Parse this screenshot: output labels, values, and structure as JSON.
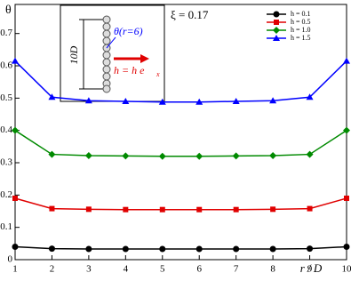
{
  "chart_data": {
    "type": "line",
    "y_label": "θ",
    "x_label": "r / D",
    "x": [
      1,
      2,
      3,
      4,
      5,
      6,
      7,
      8,
      9,
      10
    ],
    "xlim": [
      1,
      10
    ],
    "xticks": [
      1,
      2,
      3,
      4,
      5,
      6,
      7,
      8,
      9,
      10
    ],
    "ylim": [
      0,
      0.79
    ],
    "yticks": [
      0,
      0.1,
      0.2,
      0.3,
      0.4,
      0.5,
      0.6,
      0.7
    ],
    "legend_position": "upper right",
    "series": [
      {
        "name": "h = 0.1",
        "color": "#000000",
        "marker": "circle",
        "values": [
          0.04,
          0.034,
          0.033,
          0.033,
          0.033,
          0.033,
          0.033,
          0.033,
          0.034,
          0.04
        ]
      },
      {
        "name": "h = 0.5",
        "color": "#e00000",
        "marker": "square",
        "values": [
          0.19,
          0.158,
          0.156,
          0.155,
          0.155,
          0.155,
          0.155,
          0.156,
          0.158,
          0.19
        ]
      },
      {
        "name": "h = 1.0",
        "color": "#008a00",
        "marker": "diamond",
        "values": [
          0.4,
          0.326,
          0.322,
          0.321,
          0.32,
          0.32,
          0.321,
          0.322,
          0.326,
          0.4
        ]
      },
      {
        "name": "h = 1.5",
        "color": "#0000ff",
        "marker": "triangle",
        "values": [
          0.615,
          0.503,
          0.492,
          0.49,
          0.488,
          0.488,
          0.49,
          0.492,
          0.503,
          0.615
        ]
      }
    ],
    "annotations": [
      "ξ = 0.17",
      "10D",
      "θ(r=6)",
      "h = h e",
      "x"
    ]
  }
}
